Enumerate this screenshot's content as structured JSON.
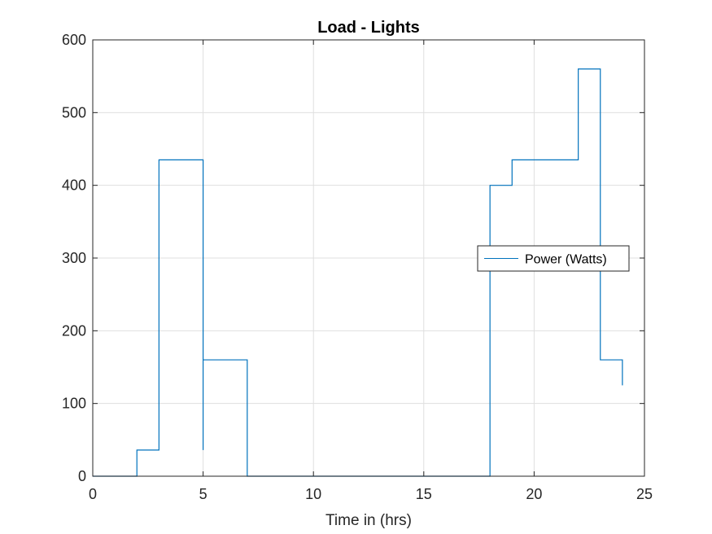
{
  "chart_data": {
    "type": "line",
    "style": "stairs",
    "title": "Load - Lights",
    "xlabel": "Time in (hrs)",
    "ylabel": "",
    "xlim": [
      0,
      25
    ],
    "ylim": [
      0,
      600
    ],
    "xticks": [
      0,
      5,
      10,
      15,
      20,
      25
    ],
    "xtick_labels": [
      "0",
      "5",
      "10",
      "15",
      "20",
      "25"
    ],
    "yticks": [
      0,
      100,
      200,
      300,
      400,
      500,
      600
    ],
    "ytick_labels": [
      "0",
      "100",
      "200",
      "300",
      "400",
      "500",
      "600"
    ],
    "grid": true,
    "legend_placement": "right",
    "series": [
      {
        "name": "Power (Watts)",
        "color": "#0072BD",
        "x": [
          0,
          2,
          2,
          3,
          3,
          5,
          5,
          5,
          5,
          7,
          7,
          18,
          18,
          19,
          19,
          22,
          22,
          23,
          23,
          24,
          24
        ],
        "y": [
          0,
          0,
          36,
          36,
          435,
          435,
          36,
          36,
          160,
          160,
          0,
          0,
          400,
          400,
          435,
          435,
          560,
          560,
          160,
          160,
          125
        ]
      }
    ]
  }
}
